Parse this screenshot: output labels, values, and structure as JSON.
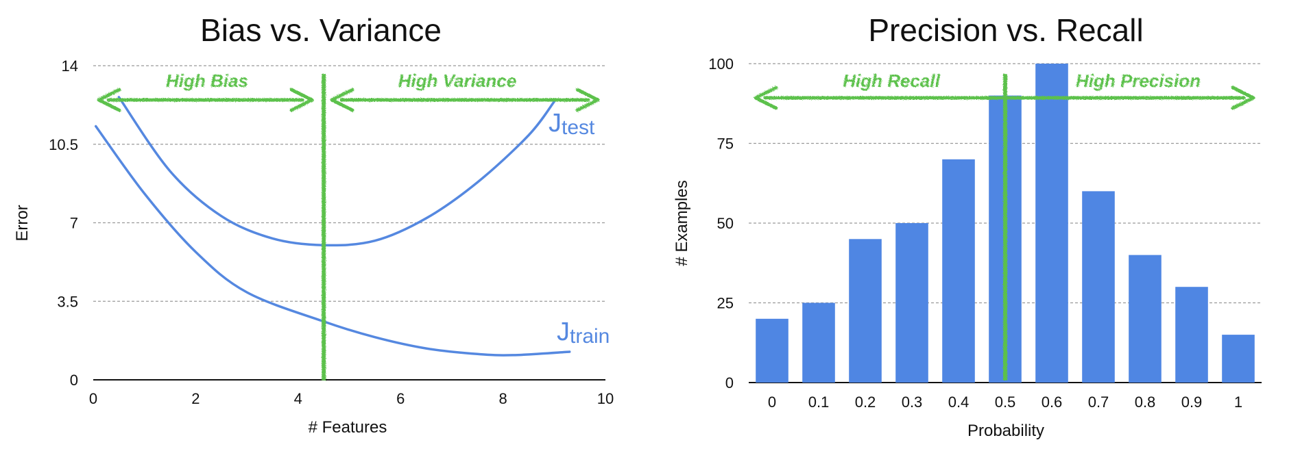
{
  "chart_data": [
    {
      "type": "line",
      "title": "Bias vs. Variance",
      "xlabel": "# Features",
      "ylabel": "Error",
      "xlim": [
        0,
        10
      ],
      "ylim": [
        0,
        14
      ],
      "x_ticks": [
        "0",
        "2",
        "4",
        "6",
        "8",
        "10"
      ],
      "y_ticks": [
        "0",
        "3.5",
        "7",
        "10.5",
        "14"
      ],
      "grid": "horizontal dashed",
      "series": [
        {
          "name": "J",
          "subscript": "test",
          "color": "#5588e0",
          "points": [
            [
              0.5,
              12.6
            ],
            [
              1.5,
              9.3
            ],
            [
              2.5,
              7.3
            ],
            [
              3.5,
              6.3
            ],
            [
              4.5,
              6.0
            ],
            [
              5.5,
              6.2
            ],
            [
              6.5,
              7.2
            ],
            [
              7.5,
              8.8
            ],
            [
              8.5,
              10.9
            ],
            [
              9.0,
              12.4
            ]
          ]
        },
        {
          "name": "J",
          "subscript": "train",
          "color": "#5588e0",
          "points": [
            [
              0.05,
              11.3
            ],
            [
              1,
              8.3
            ],
            [
              2,
              5.7
            ],
            [
              3,
              3.9
            ],
            [
              4.5,
              2.6
            ],
            [
              5.5,
              1.9
            ],
            [
              6.5,
              1.4
            ],
            [
              7.5,
              1.15
            ],
            [
              8.2,
              1.1
            ],
            [
              9.3,
              1.25
            ]
          ]
        }
      ],
      "divider_x": 4.5,
      "annotations": [
        {
          "text": "High Bias",
          "side": "left"
        },
        {
          "text": "High Variance",
          "side": "right"
        }
      ],
      "annotation_color": "#5cc14c"
    },
    {
      "type": "bar",
      "title": "Precision vs. Recall",
      "xlabel": "Probability",
      "ylabel": "# Examples",
      "ylim": [
        0,
        100
      ],
      "y_ticks": [
        "0",
        "25",
        "50",
        "75",
        "100"
      ],
      "categories": [
        "0",
        "0.1",
        "0.2",
        "0.3",
        "0.4",
        "0.5",
        "0.6",
        "0.7",
        "0.8",
        "0.9",
        "1"
      ],
      "values": [
        20,
        25,
        45,
        50,
        70,
        90,
        100,
        60,
        40,
        30,
        15
      ],
      "bar_color": "#4f86e3",
      "grid": "horizontal dashed",
      "divider_category": "0.5",
      "annotations": [
        {
          "text": "High Recall",
          "side": "left"
        },
        {
          "text": "High Precision",
          "side": "right"
        }
      ],
      "annotation_color": "#5cc14c"
    }
  ]
}
